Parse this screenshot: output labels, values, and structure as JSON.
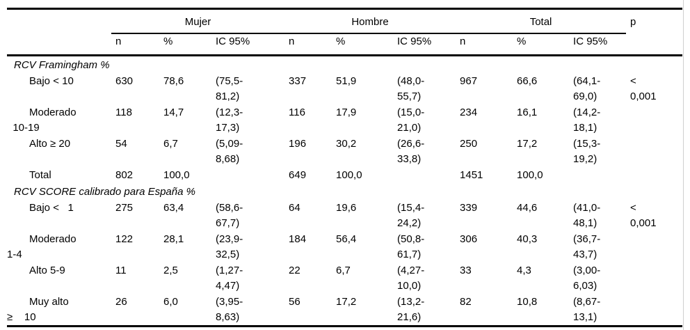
{
  "table": {
    "groups": [
      "Mujer",
      "Hombre",
      "Total"
    ],
    "p_header": "p",
    "sub_headers": [
      "n",
      "%",
      "IC 95%",
      "n",
      "%",
      "IC 95%",
      "n",
      "%",
      "IC 95%"
    ],
    "sections": [
      {
        "title": "RCV Framingham %",
        "rows": [
          {
            "label": "Bajo < 10",
            "label2": "",
            "cells": [
              "630",
              "78,6",
              "(75,5-\n81,2)",
              "337",
              "51,9",
              "(48,0-\n55,7)",
              "967",
              "66,6",
              "(64,1-\n69,0)"
            ],
            "p": "<\n0,001"
          },
          {
            "label": "Moderado",
            "label2": "  10-19",
            "cells": [
              "118",
              "14,7",
              "(12,3-\n17,3)",
              "116",
              "17,9",
              "(15,0-\n21,0)",
              "234",
              "16,1",
              "(14,2-\n18,1)"
            ],
            "p": ""
          },
          {
            "label": "Alto ≥ 20",
            "label2": "",
            "cells": [
              "54",
              "6,7",
              "(5,09-\n8,68)",
              "196",
              "30,2",
              "(26,6-\n33,8)",
              "250",
              "17,2",
              "(15,3-\n19,2)"
            ],
            "p": ""
          },
          {
            "label": "Total",
            "label2": "",
            "cells": [
              "802",
              "100,0",
              "",
              "649",
              "100,0",
              "",
              "1451",
              "100,0",
              ""
            ],
            "p": ""
          }
        ]
      },
      {
        "title": "RCV SCORE calibrado para España %",
        "rows": [
          {
            "label": "Bajo <   1",
            "label2": "",
            "cells": [
              "275",
              "63,4",
              "(58,6-\n67,7)",
              "64",
              "19,6",
              "(15,4-\n24,2)",
              "339",
              "44,6",
              "(41,0-\n48,1)"
            ],
            "p": "<\n0,001"
          },
          {
            "label": "Moderado",
            "label2": "1-4",
            "cells": [
              "122",
              "28,1",
              "(23,9-\n32,5)",
              "184",
              "56,4",
              "(50,8-\n61,7)",
              "306",
              "40,3",
              "(36,7-\n43,7)"
            ],
            "p": ""
          },
          {
            "label": "Alto 5-9",
            "label2": "",
            "cells": [
              "11",
              "2,5",
              "(1,27-\n4,47)",
              "22",
              "6,7",
              "(4,27-\n10,0)",
              "33",
              "4,3",
              "(3,00-\n6,03)"
            ],
            "p": ""
          },
          {
            "label": "Muy alto",
            "label2": "≥    10",
            "cells": [
              "26",
              "6,0",
              "(3,95-\n8,63)",
              "56",
              "17,2",
              "(13,2-\n21,6)",
              "82",
              "10,8",
              "(8,67-\n13,1)"
            ],
            "p": ""
          }
        ]
      }
    ]
  }
}
